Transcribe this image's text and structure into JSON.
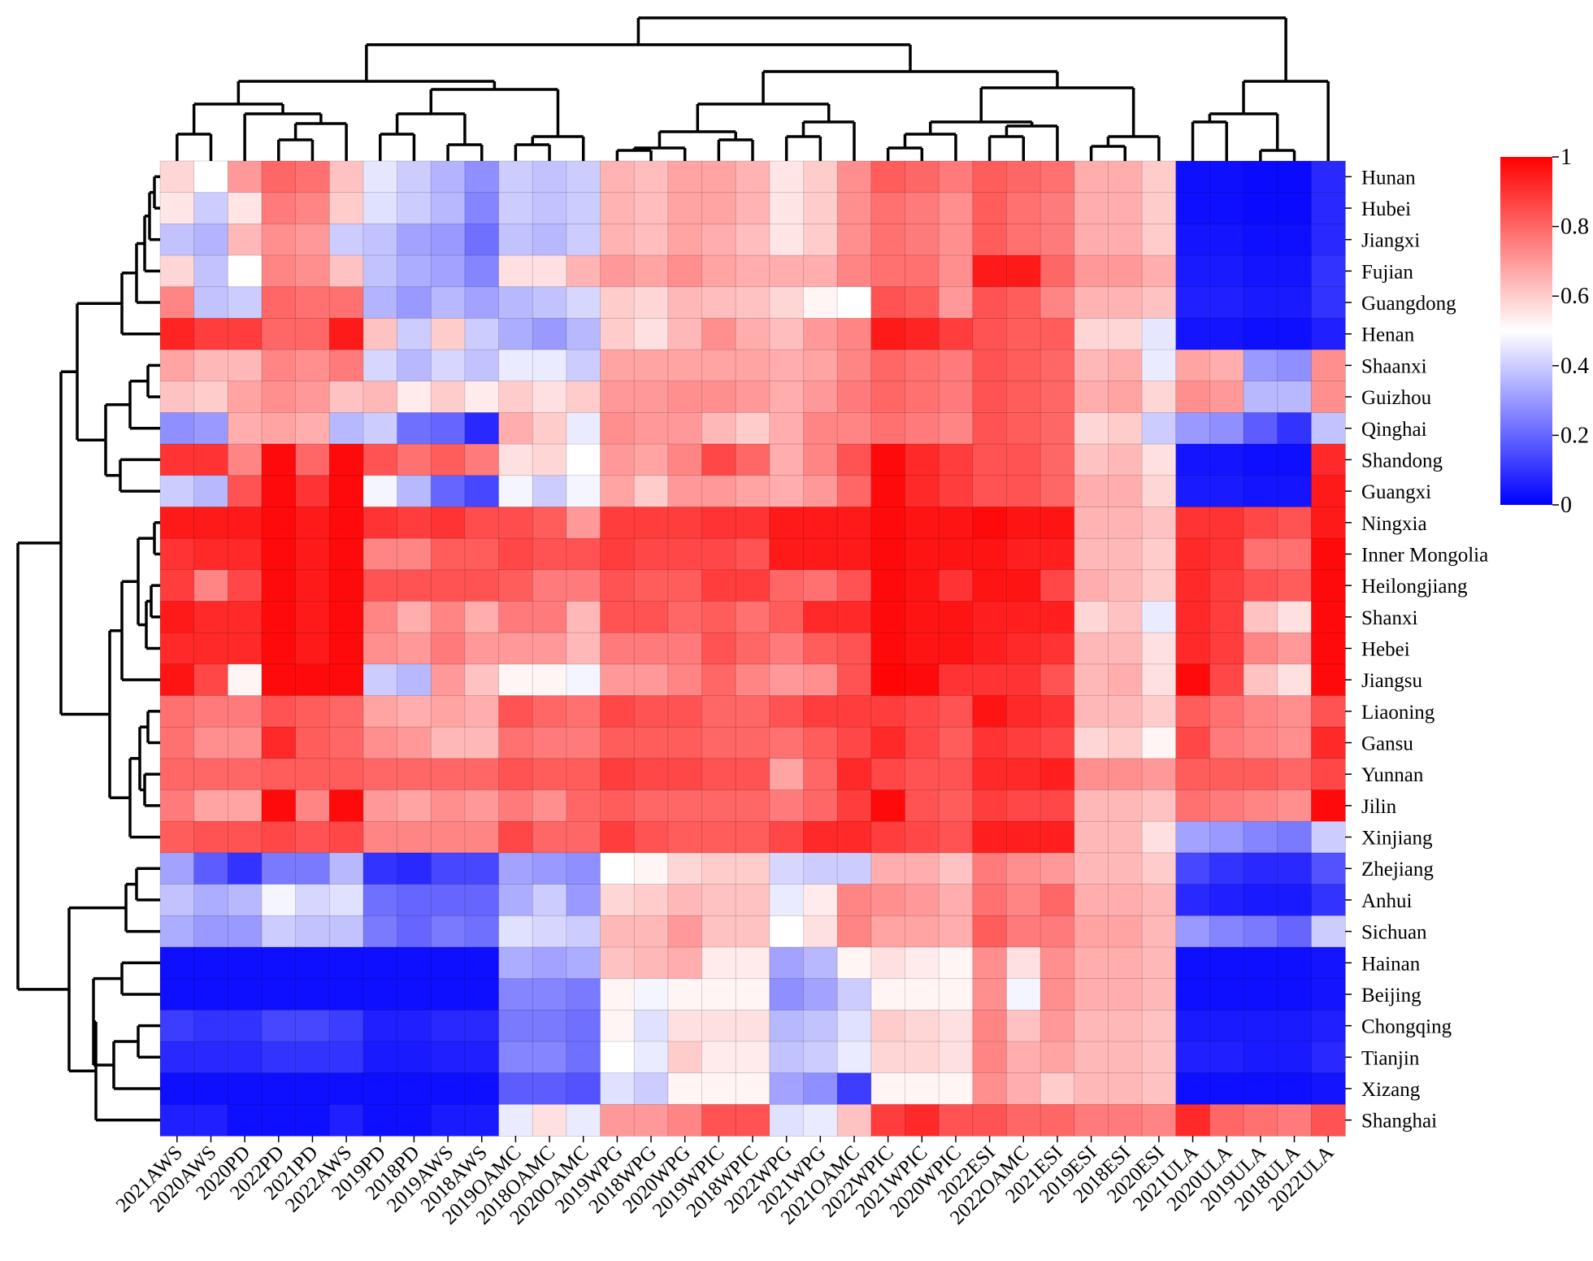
{
  "chart_data": {
    "type": "heatmap",
    "title": "",
    "xlabel": "",
    "ylabel": "",
    "columns": [
      "2021AWS",
      "2020AWS",
      "2020PD",
      "2022PD",
      "2021PD",
      "2022AWS",
      "2019PD",
      "2018PD",
      "2019AWS",
      "2018AWS",
      "2019OAMC",
      "2018OAMC",
      "2020OAMC",
      "2019WPG",
      "2018WPG",
      "2020WPG",
      "2019WPIC",
      "2018WPIC",
      "2022WPG",
      "2021WPG",
      "2021OAMC",
      "2022WPIC",
      "2021WPIC",
      "2020WPIC",
      "2022ESI",
      "2022OAMC",
      "2021ESI",
      "2019ESI",
      "2018ESI",
      "2020ESI",
      "2021ULA",
      "2020ULA",
      "2019ULA",
      "2018ULA",
      "2022ULA"
    ],
    "rows": [
      "Hunan",
      "Hubei",
      "Jiangxi",
      "Fujian",
      "Guangdong",
      "Henan",
      "Shaanxi",
      "Guizhou",
      "Qinghai",
      "Shandong",
      "Guangxi",
      "Ningxia",
      "Inner Mongolia",
      "Heilongjiang",
      "Shanxi",
      "Hebei",
      "Jiangsu",
      "Liaoning",
      "Gansu",
      "Yunnan",
      "Jilin",
      "Xinjiang",
      "Zhejiang",
      "Anhui",
      "Sichuan",
      "Hainan",
      "Beijing",
      "Chongqing",
      "Tianjin",
      "Xizang",
      "Shanghai"
    ],
    "values": [
      [
        0.58,
        0.5,
        0.7,
        0.8,
        0.78,
        0.62,
        0.45,
        0.4,
        0.35,
        0.28,
        0.4,
        0.38,
        0.4,
        0.65,
        0.63,
        0.68,
        0.68,
        0.65,
        0.55,
        0.6,
        0.72,
        0.82,
        0.8,
        0.76,
        0.82,
        0.8,
        0.78,
        0.66,
        0.66,
        0.6,
        0.03,
        0.03,
        0.02,
        0.02,
        0.08
      ],
      [
        0.55,
        0.4,
        0.55,
        0.76,
        0.74,
        0.6,
        0.44,
        0.4,
        0.36,
        0.26,
        0.4,
        0.38,
        0.4,
        0.65,
        0.63,
        0.68,
        0.68,
        0.65,
        0.55,
        0.6,
        0.72,
        0.78,
        0.76,
        0.72,
        0.82,
        0.78,
        0.76,
        0.66,
        0.66,
        0.6,
        0.03,
        0.03,
        0.02,
        0.02,
        0.08
      ],
      [
        0.38,
        0.35,
        0.64,
        0.72,
        0.7,
        0.4,
        0.38,
        0.32,
        0.3,
        0.22,
        0.38,
        0.36,
        0.4,
        0.65,
        0.63,
        0.68,
        0.66,
        0.63,
        0.55,
        0.6,
        0.72,
        0.78,
        0.76,
        0.72,
        0.82,
        0.78,
        0.76,
        0.66,
        0.66,
        0.6,
        0.04,
        0.04,
        0.03,
        0.03,
        0.08
      ],
      [
        0.58,
        0.38,
        0.5,
        0.74,
        0.72,
        0.62,
        0.38,
        0.34,
        0.32,
        0.26,
        0.56,
        0.56,
        0.65,
        0.7,
        0.68,
        0.72,
        0.68,
        0.66,
        0.66,
        0.66,
        0.74,
        0.78,
        0.78,
        0.72,
        0.95,
        0.95,
        0.8,
        0.7,
        0.7,
        0.66,
        0.05,
        0.05,
        0.04,
        0.04,
        0.1
      ],
      [
        0.74,
        0.38,
        0.4,
        0.8,
        0.78,
        0.78,
        0.35,
        0.3,
        0.36,
        0.32,
        0.36,
        0.38,
        0.42,
        0.6,
        0.58,
        0.64,
        0.63,
        0.62,
        0.58,
        0.52,
        0.5,
        0.84,
        0.82,
        0.7,
        0.84,
        0.82,
        0.74,
        0.65,
        0.65,
        0.62,
        0.06,
        0.06,
        0.05,
        0.05,
        0.1
      ],
      [
        0.93,
        0.88,
        0.88,
        0.8,
        0.8,
        0.95,
        0.62,
        0.4,
        0.6,
        0.4,
        0.34,
        0.3,
        0.36,
        0.6,
        0.56,
        0.64,
        0.72,
        0.66,
        0.63,
        0.7,
        0.74,
        0.95,
        0.93,
        0.88,
        0.84,
        0.82,
        0.82,
        0.58,
        0.58,
        0.45,
        0.04,
        0.04,
        0.03,
        0.03,
        0.06
      ],
      [
        0.68,
        0.64,
        0.64,
        0.74,
        0.72,
        0.76,
        0.42,
        0.36,
        0.42,
        0.38,
        0.46,
        0.46,
        0.4,
        0.68,
        0.68,
        0.68,
        0.68,
        0.68,
        0.66,
        0.68,
        0.74,
        0.8,
        0.78,
        0.76,
        0.84,
        0.82,
        0.8,
        0.64,
        0.66,
        0.46,
        0.68,
        0.66,
        0.3,
        0.28,
        0.72
      ],
      [
        0.62,
        0.6,
        0.68,
        0.72,
        0.7,
        0.62,
        0.64,
        0.54,
        0.6,
        0.54,
        0.6,
        0.56,
        0.6,
        0.7,
        0.7,
        0.72,
        0.72,
        0.7,
        0.66,
        0.7,
        0.76,
        0.8,
        0.78,
        0.76,
        0.84,
        0.82,
        0.8,
        0.66,
        0.68,
        0.58,
        0.72,
        0.7,
        0.36,
        0.36,
        0.72
      ],
      [
        0.28,
        0.3,
        0.66,
        0.68,
        0.66,
        0.36,
        0.4,
        0.22,
        0.2,
        0.08,
        0.66,
        0.6,
        0.46,
        0.72,
        0.7,
        0.7,
        0.64,
        0.6,
        0.66,
        0.74,
        0.74,
        0.78,
        0.76,
        0.74,
        0.84,
        0.82,
        0.8,
        0.58,
        0.6,
        0.4,
        0.3,
        0.28,
        0.18,
        0.1,
        0.38
      ],
      [
        0.9,
        0.9,
        0.74,
        0.98,
        0.8,
        0.98,
        0.84,
        0.78,
        0.82,
        0.76,
        0.56,
        0.58,
        0.5,
        0.7,
        0.68,
        0.74,
        0.86,
        0.8,
        0.66,
        0.74,
        0.84,
        0.98,
        0.92,
        0.88,
        0.84,
        0.84,
        0.8,
        0.62,
        0.64,
        0.56,
        0.04,
        0.04,
        0.03,
        0.03,
        0.92
      ],
      [
        0.4,
        0.36,
        0.84,
        0.98,
        0.9,
        0.98,
        0.48,
        0.36,
        0.2,
        0.14,
        0.48,
        0.4,
        0.48,
        0.68,
        0.6,
        0.7,
        0.7,
        0.68,
        0.66,
        0.7,
        0.8,
        0.98,
        0.92,
        0.88,
        0.84,
        0.84,
        0.8,
        0.66,
        0.66,
        0.58,
        0.05,
        0.05,
        0.04,
        0.04,
        0.95
      ],
      [
        0.95,
        0.95,
        0.95,
        0.98,
        0.95,
        0.98,
        0.9,
        0.88,
        0.9,
        0.85,
        0.85,
        0.82,
        0.7,
        0.88,
        0.88,
        0.88,
        0.9,
        0.9,
        0.95,
        0.95,
        0.95,
        0.98,
        0.96,
        0.96,
        0.98,
        0.96,
        0.96,
        0.65,
        0.65,
        0.62,
        0.9,
        0.9,
        0.86,
        0.84,
        0.95
      ],
      [
        0.9,
        0.92,
        0.92,
        0.98,
        0.95,
        0.98,
        0.74,
        0.74,
        0.82,
        0.82,
        0.86,
        0.84,
        0.84,
        0.88,
        0.86,
        0.86,
        0.86,
        0.84,
        0.95,
        0.95,
        0.95,
        0.98,
        0.96,
        0.96,
        0.96,
        0.94,
        0.94,
        0.64,
        0.64,
        0.6,
        0.92,
        0.9,
        0.78,
        0.78,
        0.98
      ],
      [
        0.88,
        0.74,
        0.86,
        0.98,
        0.95,
        0.98,
        0.84,
        0.84,
        0.84,
        0.84,
        0.82,
        0.76,
        0.76,
        0.84,
        0.82,
        0.82,
        0.88,
        0.88,
        0.8,
        0.78,
        0.84,
        0.98,
        0.96,
        0.9,
        0.96,
        0.96,
        0.86,
        0.66,
        0.64,
        0.6,
        0.92,
        0.88,
        0.84,
        0.82,
        0.98
      ],
      [
        0.95,
        0.92,
        0.92,
        0.98,
        0.95,
        0.98,
        0.74,
        0.66,
        0.74,
        0.66,
        0.76,
        0.76,
        0.64,
        0.84,
        0.84,
        0.8,
        0.82,
        0.78,
        0.82,
        0.92,
        0.92,
        0.98,
        0.96,
        0.96,
        0.94,
        0.94,
        0.94,
        0.58,
        0.62,
        0.46,
        0.92,
        0.88,
        0.62,
        0.56,
        0.98
      ],
      [
        0.92,
        0.92,
        0.92,
        0.98,
        0.95,
        0.98,
        0.72,
        0.7,
        0.76,
        0.7,
        0.7,
        0.7,
        0.64,
        0.76,
        0.76,
        0.76,
        0.84,
        0.8,
        0.76,
        0.82,
        0.84,
        0.98,
        0.96,
        0.96,
        0.94,
        0.92,
        0.9,
        0.64,
        0.64,
        0.56,
        0.92,
        0.88,
        0.74,
        0.7,
        0.98
      ],
      [
        0.96,
        0.86,
        0.52,
        0.98,
        0.98,
        0.98,
        0.4,
        0.36,
        0.7,
        0.62,
        0.52,
        0.52,
        0.48,
        0.7,
        0.7,
        0.74,
        0.8,
        0.74,
        0.7,
        0.72,
        0.84,
        0.99,
        0.98,
        0.9,
        0.9,
        0.9,
        0.84,
        0.64,
        0.66,
        0.56,
        0.98,
        0.86,
        0.62,
        0.56,
        0.98
      ],
      [
        0.78,
        0.76,
        0.76,
        0.84,
        0.82,
        0.8,
        0.68,
        0.66,
        0.68,
        0.66,
        0.84,
        0.8,
        0.78,
        0.86,
        0.84,
        0.84,
        0.8,
        0.8,
        0.84,
        0.88,
        0.88,
        0.88,
        0.86,
        0.84,
        0.96,
        0.92,
        0.9,
        0.64,
        0.64,
        0.6,
        0.82,
        0.78,
        0.74,
        0.72,
        0.84
      ],
      [
        0.78,
        0.72,
        0.72,
        0.92,
        0.82,
        0.8,
        0.72,
        0.7,
        0.64,
        0.64,
        0.78,
        0.76,
        0.76,
        0.82,
        0.82,
        0.82,
        0.8,
        0.8,
        0.78,
        0.82,
        0.86,
        0.92,
        0.86,
        0.82,
        0.9,
        0.88,
        0.86,
        0.58,
        0.6,
        0.52,
        0.86,
        0.76,
        0.74,
        0.72,
        0.92
      ],
      [
        0.8,
        0.8,
        0.8,
        0.82,
        0.82,
        0.82,
        0.8,
        0.8,
        0.8,
        0.8,
        0.84,
        0.82,
        0.82,
        0.88,
        0.86,
        0.86,
        0.84,
        0.84,
        0.68,
        0.8,
        0.92,
        0.86,
        0.84,
        0.84,
        0.92,
        0.92,
        0.94,
        0.72,
        0.72,
        0.7,
        0.82,
        0.82,
        0.82,
        0.8,
        0.86
      ],
      [
        0.76,
        0.68,
        0.68,
        0.98,
        0.74,
        0.98,
        0.7,
        0.68,
        0.72,
        0.7,
        0.76,
        0.72,
        0.8,
        0.82,
        0.8,
        0.8,
        0.8,
        0.8,
        0.76,
        0.8,
        0.88,
        0.98,
        0.84,
        0.82,
        0.88,
        0.86,
        0.86,
        0.64,
        0.64,
        0.62,
        0.78,
        0.76,
        0.74,
        0.72,
        0.98
      ],
      [
        0.82,
        0.84,
        0.84,
        0.86,
        0.84,
        0.86,
        0.74,
        0.74,
        0.74,
        0.74,
        0.86,
        0.8,
        0.8,
        0.88,
        0.84,
        0.82,
        0.82,
        0.82,
        0.86,
        0.92,
        0.92,
        0.88,
        0.86,
        0.84,
        0.94,
        0.94,
        0.94,
        0.64,
        0.64,
        0.56,
        0.32,
        0.3,
        0.26,
        0.24,
        0.4
      ],
      [
        0.32,
        0.18,
        0.1,
        0.24,
        0.24,
        0.36,
        0.1,
        0.08,
        0.14,
        0.14,
        0.32,
        0.3,
        0.28,
        0.5,
        0.52,
        0.58,
        0.6,
        0.6,
        0.42,
        0.4,
        0.4,
        0.66,
        0.66,
        0.62,
        0.76,
        0.72,
        0.7,
        0.64,
        0.64,
        0.6,
        0.14,
        0.1,
        0.08,
        0.08,
        0.16
      ],
      [
        0.38,
        0.34,
        0.36,
        0.48,
        0.42,
        0.44,
        0.22,
        0.2,
        0.2,
        0.2,
        0.34,
        0.4,
        0.3,
        0.58,
        0.6,
        0.64,
        0.62,
        0.62,
        0.46,
        0.54,
        0.74,
        0.72,
        0.7,
        0.66,
        0.78,
        0.74,
        0.8,
        0.66,
        0.66,
        0.64,
        0.08,
        0.06,
        0.05,
        0.05,
        0.1
      ],
      [
        0.34,
        0.3,
        0.3,
        0.4,
        0.38,
        0.38,
        0.24,
        0.2,
        0.24,
        0.22,
        0.44,
        0.42,
        0.4,
        0.64,
        0.64,
        0.7,
        0.62,
        0.62,
        0.5,
        0.56,
        0.74,
        0.68,
        0.68,
        0.66,
        0.82,
        0.76,
        0.76,
        0.68,
        0.68,
        0.64,
        0.3,
        0.26,
        0.24,
        0.2,
        0.4
      ],
      [
        0.03,
        0.03,
        0.03,
        0.03,
        0.03,
        0.03,
        0.03,
        0.03,
        0.03,
        0.03,
        0.34,
        0.32,
        0.34,
        0.62,
        0.64,
        0.66,
        0.54,
        0.54,
        0.32,
        0.36,
        0.52,
        0.56,
        0.54,
        0.52,
        0.72,
        0.56,
        0.72,
        0.66,
        0.66,
        0.64,
        0.03,
        0.03,
        0.03,
        0.03,
        0.04
      ],
      [
        0.03,
        0.03,
        0.03,
        0.03,
        0.03,
        0.03,
        0.03,
        0.03,
        0.03,
        0.03,
        0.26,
        0.26,
        0.24,
        0.52,
        0.48,
        0.52,
        0.52,
        0.52,
        0.28,
        0.32,
        0.4,
        0.52,
        0.52,
        0.52,
        0.72,
        0.48,
        0.72,
        0.66,
        0.66,
        0.64,
        0.03,
        0.03,
        0.03,
        0.03,
        0.04
      ],
      [
        0.12,
        0.1,
        0.1,
        0.14,
        0.14,
        0.12,
        0.06,
        0.06,
        0.08,
        0.08,
        0.24,
        0.24,
        0.22,
        0.52,
        0.44,
        0.56,
        0.56,
        0.56,
        0.36,
        0.38,
        0.44,
        0.6,
        0.58,
        0.56,
        0.74,
        0.62,
        0.7,
        0.64,
        0.64,
        0.62,
        0.05,
        0.05,
        0.05,
        0.05,
        0.06
      ],
      [
        0.08,
        0.08,
        0.08,
        0.1,
        0.1,
        0.1,
        0.05,
        0.05,
        0.06,
        0.06,
        0.26,
        0.26,
        0.22,
        0.5,
        0.46,
        0.6,
        0.54,
        0.54,
        0.38,
        0.4,
        0.46,
        0.58,
        0.58,
        0.56,
        0.74,
        0.66,
        0.68,
        0.64,
        0.64,
        0.62,
        0.06,
        0.06,
        0.05,
        0.05,
        0.08
      ],
      [
        0.03,
        0.03,
        0.03,
        0.03,
        0.03,
        0.03,
        0.03,
        0.03,
        0.03,
        0.03,
        0.18,
        0.18,
        0.16,
        0.44,
        0.4,
        0.52,
        0.52,
        0.52,
        0.32,
        0.28,
        0.12,
        0.52,
        0.52,
        0.52,
        0.72,
        0.66,
        0.6,
        0.64,
        0.64,
        0.62,
        0.03,
        0.03,
        0.03,
        0.03,
        0.04
      ],
      [
        0.06,
        0.06,
        0.03,
        0.03,
        0.03,
        0.06,
        0.03,
        0.03,
        0.05,
        0.05,
        0.46,
        0.56,
        0.46,
        0.7,
        0.7,
        0.74,
        0.84,
        0.84,
        0.44,
        0.46,
        0.62,
        0.88,
        0.92,
        0.84,
        0.84,
        0.8,
        0.8,
        0.76,
        0.76,
        0.74,
        0.92,
        0.8,
        0.78,
        0.76,
        0.84
      ]
    ],
    "colorbar": {
      "min": 0,
      "max": 1,
      "ticks": [
        0,
        0.2,
        0.4,
        0.6,
        0.8,
        1
      ],
      "tick_labels": [
        "0",
        "0.2",
        "0.4",
        "0.6",
        "0.8",
        "1"
      ],
      "colors": [
        "#0000ff",
        "#ffffff",
        "#ff0000"
      ]
    },
    "row_dendrogram": true,
    "column_dendrogram": true
  }
}
